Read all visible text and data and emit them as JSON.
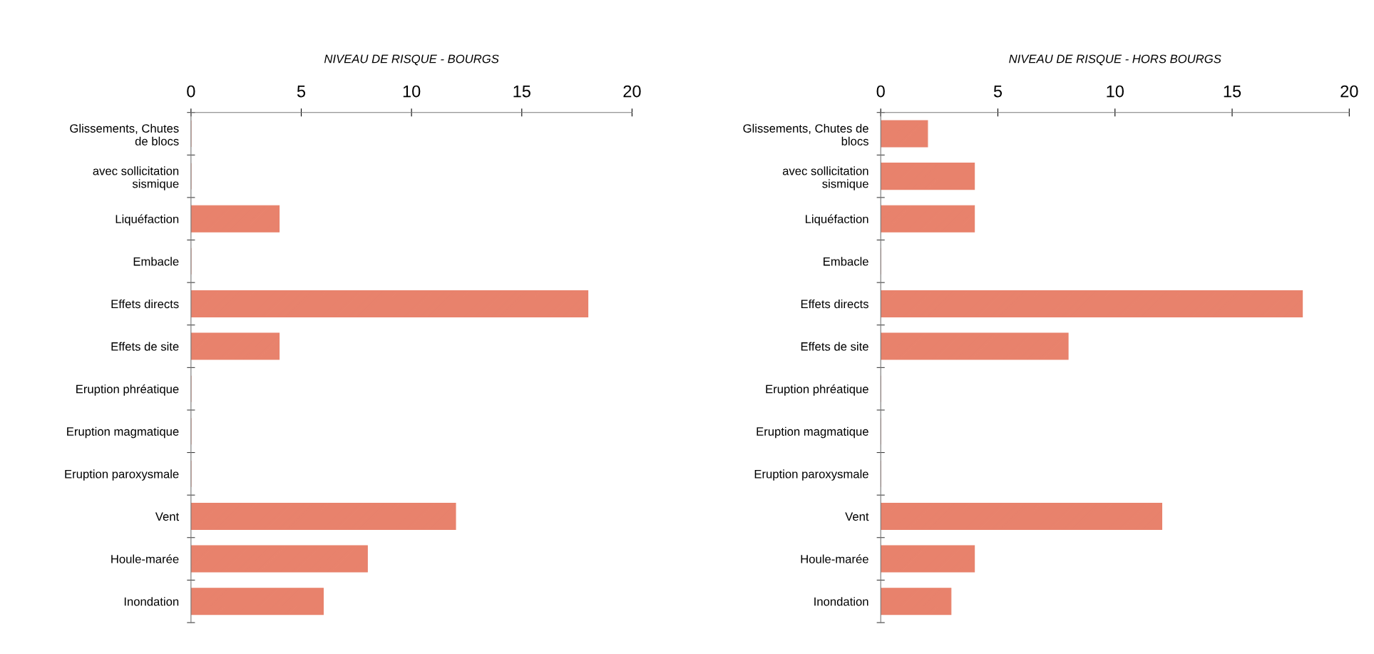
{
  "chart_data": [
    {
      "type": "bar",
      "orientation": "horizontal",
      "title": "NIVEAU DE RISQUE - BOURGS",
      "categories": [
        "Glissements, Chutes\nde blocs",
        "avec sollicitation\nsismique",
        "Liquéfaction",
        "Embacle",
        "Effets directs",
        "Effets de site",
        "Eruption phréatique",
        "Eruption magmatique",
        "Eruption paroxysmale",
        "Vent",
        "Houle-marée",
        "Inondation"
      ],
      "values": [
        0,
        0,
        4,
        0,
        18,
        4,
        0,
        0,
        0,
        12,
        8,
        6
      ],
      "color": "#e8826c",
      "xlim": [
        0,
        20
      ],
      "xticks": [
        0,
        5,
        10,
        15,
        20
      ],
      "grid": false
    },
    {
      "type": "bar",
      "orientation": "horizontal",
      "title": "NIVEAU DE RISQUE - HORS BOURGS",
      "categories": [
        "Glissements, Chutes de\nblocs",
        "avec sollicitation\nsismique",
        "Liquéfaction",
        "Embacle",
        "Effets directs",
        "Effets de site",
        "Eruption phréatique",
        "Eruption magmatique",
        "Eruption paroxysmale",
        "Vent",
        "Houle-marée",
        "Inondation"
      ],
      "values": [
        2,
        4,
        4,
        0,
        18,
        8,
        0,
        0,
        0,
        12,
        4,
        3
      ],
      "color": "#e8826c",
      "xlim": [
        0,
        20
      ],
      "xticks": [
        0,
        5,
        10,
        15,
        20
      ],
      "grid": false
    }
  ]
}
